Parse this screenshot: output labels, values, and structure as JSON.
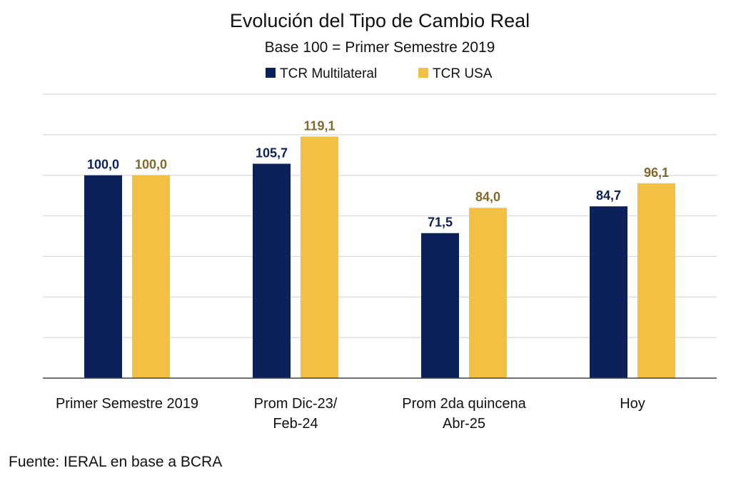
{
  "chart_data": {
    "type": "bar",
    "title": "Evolución del Tipo de Cambio Real",
    "subtitle": "Base 100 = Primer Semestre 2019",
    "xlabel": "",
    "ylabel": "",
    "ylim": [
      0,
      140
    ],
    "grid": true,
    "grid_step": 20,
    "legend_position": "top-center",
    "categories": [
      [
        "Primer Semestre 2019"
      ],
      [
        "Prom Dic-23/",
        "Feb-24"
      ],
      [
        "Prom 2da quincena",
        "Abr-25"
      ],
      [
        "Hoy"
      ]
    ],
    "series": [
      {
        "name": "TCR Multilateral",
        "color": "#0c2059",
        "label_color": "#0c2059",
        "values": [
          100.0,
          105.7,
          71.5,
          84.7
        ],
        "labels": [
          "100,0",
          "105,7",
          "71,5",
          "84,7"
        ]
      },
      {
        "name": "TCR USA",
        "color": "#f2c143",
        "label_color": "#7f6a2a",
        "values": [
          100.0,
          119.1,
          84.0,
          96.1
        ],
        "labels": [
          "100,0",
          "119,1",
          "84,0",
          "96,1"
        ]
      }
    ]
  },
  "source": "Fuente: IERAL en base a BCRA"
}
